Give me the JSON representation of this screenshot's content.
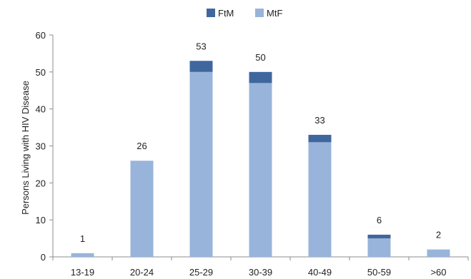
{
  "chart_data": {
    "type": "bar",
    "stacked": true,
    "categories": [
      "13-19",
      "20-24",
      "25-29",
      "30-39",
      "40-49",
      "50-59",
      ">60"
    ],
    "series": [
      {
        "name": "MtF",
        "values": [
          1,
          26,
          50,
          47,
          31,
          5,
          2
        ],
        "color": "#98b4da"
      },
      {
        "name": "FtM",
        "values": [
          0,
          0,
          3,
          3,
          2,
          1,
          0
        ],
        "color": "#3f679e"
      }
    ],
    "totals": [
      "1",
      "26",
      "53",
      "50",
      "33",
      "6",
      "2"
    ],
    "ylabel": "Persons Living with HIV Disease",
    "xlabel": "",
    "ylim": [
      0,
      60
    ],
    "yticks": [
      "0",
      "10",
      "20",
      "30",
      "40",
      "50",
      "60"
    ],
    "grid": false,
    "legend": {
      "position": "top-center",
      "order": [
        "FtM",
        "MtF"
      ]
    }
  }
}
